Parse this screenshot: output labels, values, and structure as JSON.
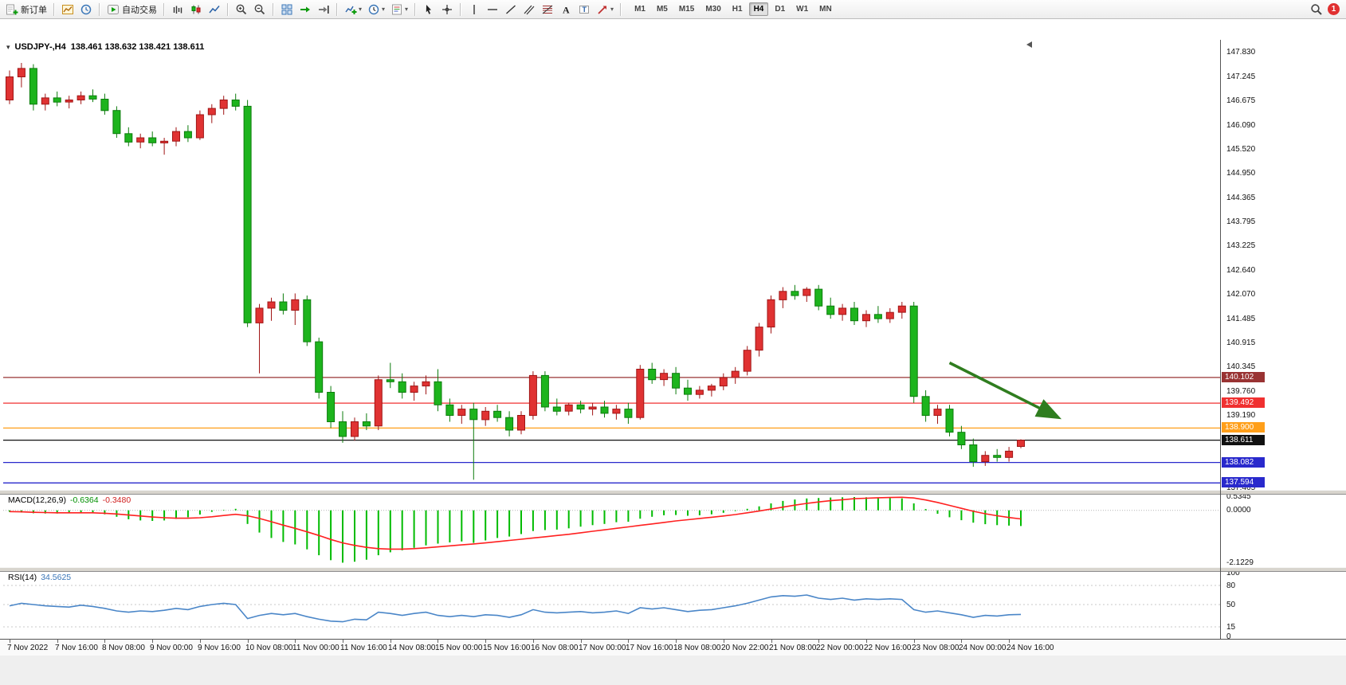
{
  "toolbar": {
    "new_order_label": "新订单",
    "auto_trading_label": "自动交易",
    "timeframes": [
      "M1",
      "M5",
      "M15",
      "M30",
      "H1",
      "H4",
      "D1",
      "W1",
      "MN"
    ],
    "active_timeframe": "H4",
    "notification_count": "1"
  },
  "chart": {
    "title_symbol": "USDJPY-,H4",
    "title_ohlc": "138.461 138.632 138.421 138.611"
  },
  "chart_data": {
    "type": "candlestick",
    "symbol": "USDJPY-",
    "timeframe": "H4",
    "title": "USDJPY-,H4 138.461 138.632 138.421 138.611",
    "current_ohlc": {
      "open": "138.461",
      "high": "138.632",
      "low": "138.421",
      "close": "138.611"
    },
    "price_range": [
      137.43,
      148.13
    ],
    "y_ticks": [
      "147.830",
      "147.245",
      "146.675",
      "146.090",
      "145.520",
      "144.950",
      "144.365",
      "143.795",
      "143.225",
      "142.640",
      "142.070",
      "141.485",
      "140.915",
      "140.345",
      "139.760",
      "139.190",
      "137.465"
    ],
    "x_label_step": 4,
    "x_labels": [
      "7 Nov 2022",
      "7 Nov 16:00",
      "8 Nov 08:00",
      "9 Nov 00:00",
      "9 Nov 16:00",
      "10 Nov 08:00",
      "11 Nov 00:00",
      "11 Nov 16:00",
      "14 Nov 08:00",
      "15 Nov 00:00",
      "15 Nov 16:00",
      "16 Nov 08:00",
      "17 Nov 00:00",
      "17 Nov 16:00",
      "18 Nov 08:00",
      "20 Nov 22:00",
      "21 Nov 08:00",
      "22 Nov 00:00",
      "22 Nov 16:00",
      "23 Nov 08:00",
      "24 Nov 00:00",
      "24 Nov 16:00"
    ],
    "colors": {
      "up": "#e03232",
      "up_border": "#a01515",
      "down": "#1db41d",
      "down_border": "#0c7c0c",
      "background": "#ffffff"
    },
    "candles": [
      [
        146.7,
        147.4,
        146.6,
        147.25
      ],
      [
        147.25,
        147.58,
        147.0,
        147.45
      ],
      [
        147.45,
        147.55,
        146.45,
        146.6
      ],
      [
        146.6,
        146.85,
        146.45,
        146.75
      ],
      [
        146.75,
        146.9,
        146.55,
        146.65
      ],
      [
        146.65,
        146.8,
        146.5,
        146.7
      ],
      [
        146.7,
        146.9,
        146.6,
        146.8
      ],
      [
        146.8,
        146.95,
        146.65,
        146.72
      ],
      [
        146.72,
        146.85,
        146.35,
        146.45
      ],
      [
        146.45,
        146.55,
        145.8,
        145.9
      ],
      [
        145.9,
        146.05,
        145.6,
        145.7
      ],
      [
        145.7,
        145.9,
        145.55,
        145.8
      ],
      [
        145.8,
        145.95,
        145.6,
        145.68
      ],
      [
        145.68,
        145.8,
        145.4,
        145.72
      ],
      [
        145.72,
        146.05,
        145.6,
        145.95
      ],
      [
        145.95,
        146.1,
        145.7,
        145.8
      ],
      [
        145.8,
        146.45,
        145.75,
        146.35
      ],
      [
        146.35,
        146.6,
        146.15,
        146.5
      ],
      [
        146.5,
        146.8,
        146.35,
        146.7
      ],
      [
        146.7,
        146.85,
        146.45,
        146.55
      ],
      [
        146.55,
        146.7,
        141.3,
        141.4
      ],
      [
        141.4,
        141.85,
        140.2,
        141.75
      ],
      [
        141.75,
        142.0,
        141.45,
        141.9
      ],
      [
        141.9,
        142.1,
        141.6,
        141.7
      ],
      [
        141.7,
        142.1,
        141.35,
        141.95
      ],
      [
        141.95,
        142.05,
        140.85,
        140.95
      ],
      [
        140.95,
        141.05,
        139.6,
        139.75
      ],
      [
        139.75,
        139.9,
        138.9,
        139.05
      ],
      [
        139.05,
        139.3,
        138.55,
        138.7
      ],
      [
        138.7,
        139.15,
        138.6,
        139.05
      ],
      [
        139.05,
        139.25,
        138.85,
        138.95
      ],
      [
        138.95,
        140.15,
        138.85,
        140.05
      ],
      [
        140.05,
        140.45,
        139.85,
        140.0
      ],
      [
        140.0,
        140.2,
        139.6,
        139.75
      ],
      [
        139.75,
        140.0,
        139.55,
        139.9
      ],
      [
        139.9,
        140.15,
        139.7,
        140.0
      ],
      [
        140.0,
        140.3,
        139.3,
        139.45
      ],
      [
        139.45,
        139.6,
        139.05,
        139.2
      ],
      [
        139.2,
        139.45,
        139.0,
        139.35
      ],
      [
        139.35,
        139.5,
        137.67,
        139.1
      ],
      [
        139.1,
        139.4,
        138.95,
        139.3
      ],
      [
        139.3,
        139.45,
        139.05,
        139.15
      ],
      [
        139.15,
        139.3,
        138.7,
        138.85
      ],
      [
        138.85,
        139.3,
        138.75,
        139.2
      ],
      [
        139.2,
        140.25,
        139.1,
        140.15
      ],
      [
        140.15,
        140.25,
        139.3,
        139.4
      ],
      [
        139.4,
        139.6,
        139.2,
        139.3
      ],
      [
        139.3,
        139.5,
        139.2,
        139.45
      ],
      [
        139.45,
        139.55,
        139.25,
        139.35
      ],
      [
        139.35,
        139.5,
        139.2,
        139.4
      ],
      [
        139.4,
        139.55,
        139.15,
        139.25
      ],
      [
        139.25,
        139.45,
        139.1,
        139.35
      ],
      [
        139.35,
        139.5,
        139.0,
        139.15
      ],
      [
        139.15,
        140.4,
        139.1,
        140.3
      ],
      [
        140.3,
        140.45,
        139.95,
        140.05
      ],
      [
        140.05,
        140.3,
        139.9,
        140.2
      ],
      [
        140.2,
        140.35,
        139.7,
        139.85
      ],
      [
        139.85,
        140.05,
        139.55,
        139.7
      ],
      [
        139.7,
        139.9,
        139.6,
        139.8
      ],
      [
        139.8,
        139.95,
        139.65,
        139.9
      ],
      [
        139.9,
        140.2,
        139.8,
        140.1
      ],
      [
        140.1,
        140.35,
        139.95,
        140.25
      ],
      [
        140.25,
        140.85,
        140.15,
        140.75
      ],
      [
        140.75,
        141.4,
        140.6,
        141.3
      ],
      [
        141.3,
        142.05,
        141.15,
        141.95
      ],
      [
        141.95,
        142.25,
        141.75,
        142.15
      ],
      [
        142.15,
        142.3,
        141.95,
        142.05
      ],
      [
        142.05,
        142.25,
        141.9,
        142.2
      ],
      [
        142.2,
        142.3,
        141.7,
        141.8
      ],
      [
        141.8,
        142.0,
        141.5,
        141.6
      ],
      [
        141.6,
        141.85,
        141.45,
        141.75
      ],
      [
        141.75,
        141.9,
        141.35,
        141.45
      ],
      [
        141.45,
        141.7,
        141.3,
        141.6
      ],
      [
        141.6,
        141.8,
        141.4,
        141.5
      ],
      [
        141.5,
        141.75,
        141.4,
        141.65
      ],
      [
        141.65,
        141.9,
        141.5,
        141.8
      ],
      [
        141.8,
        141.9,
        139.5,
        139.65
      ],
      [
        139.65,
        139.8,
        139.05,
        139.2
      ],
      [
        139.2,
        139.45,
        139.0,
        139.35
      ],
      [
        139.35,
        139.45,
        138.7,
        138.8
      ],
      [
        138.8,
        138.95,
        138.4,
        138.5
      ],
      [
        138.5,
        138.65,
        137.98,
        138.1
      ],
      [
        138.1,
        138.35,
        138.0,
        138.25
      ],
      [
        138.25,
        138.4,
        138.1,
        138.2
      ],
      [
        138.2,
        138.45,
        138.1,
        138.35
      ],
      [
        138.461,
        138.632,
        138.421,
        138.611
      ]
    ],
    "hlines": [
      {
        "price": 140.102,
        "label": "140.102",
        "color": "#993333"
      },
      {
        "price": 139.492,
        "label": "139.492",
        "color": "#f03030"
      },
      {
        "price": 138.9,
        "label": "138.900",
        "color": "#ff9f1a"
      },
      {
        "price": 138.611,
        "label": "138.611",
        "color": "#111111"
      },
      {
        "price": 138.082,
        "label": "138.082",
        "color": "#2929cc"
      },
      {
        "price": 137.594,
        "label": "137.594",
        "color": "#2929cc"
      }
    ],
    "arrow": {
      "from_index": 79,
      "from_price": 140.45,
      "to_index": 88,
      "to_price": 139.17,
      "color": "#2f7d1f"
    },
    "macd": {
      "label": "MACD(12,26,9)",
      "main_value": "-0.6364",
      "signal_value": "-0.3480",
      "range": [
        0.7,
        -2.3
      ],
      "hist_color": "#00bb00",
      "signal_color": "#ff2020",
      "ticks": [
        {
          "value": 0.5345,
          "label": "0.5345"
        },
        {
          "value": 0,
          "label": "0.0000"
        },
        {
          "value": -2.1229,
          "label": "-2.1229"
        }
      ],
      "histogram": [
        -0.06,
        -0.09,
        -0.12,
        -0.13,
        -0.13,
        -0.11,
        -0.09,
        -0.11,
        -0.16,
        -0.26,
        -0.36,
        -0.41,
        -0.43,
        -0.41,
        -0.35,
        -0.28,
        -0.17,
        -0.06,
        0.02,
        0.06,
        -0.55,
        -0.9,
        -1.12,
        -1.28,
        -1.38,
        -1.58,
        -1.82,
        -2.02,
        -2.12,
        -2.08,
        -2.0,
        -1.82,
        -1.7,
        -1.62,
        -1.52,
        -1.42,
        -1.35,
        -1.3,
        -1.26,
        -1.32,
        -1.22,
        -1.12,
        -1.06,
        -0.96,
        -0.84,
        -0.8,
        -0.78,
        -0.73,
        -0.66,
        -0.6,
        -0.55,
        -0.48,
        -0.46,
        -0.34,
        -0.26,
        -0.2,
        -0.19,
        -0.22,
        -0.2,
        -0.16,
        -0.1,
        -0.03,
        0.06,
        0.16,
        0.28,
        0.38,
        0.44,
        0.48,
        0.5,
        0.52,
        0.53,
        0.54,
        0.53,
        0.52,
        0.5,
        0.48,
        0.28,
        0.05,
        -0.14,
        -0.28,
        -0.4,
        -0.5,
        -0.56,
        -0.6,
        -0.62,
        -0.6364
      ],
      "signal": [
        -0.05,
        -0.06,
        -0.08,
        -0.09,
        -0.1,
        -0.1,
        -0.1,
        -0.1,
        -0.12,
        -0.15,
        -0.19,
        -0.23,
        -0.27,
        -0.3,
        -0.32,
        -0.32,
        -0.3,
        -0.26,
        -0.21,
        -0.16,
        -0.22,
        -0.33,
        -0.46,
        -0.6,
        -0.73,
        -0.87,
        -1.02,
        -1.18,
        -1.32,
        -1.42,
        -1.5,
        -1.55,
        -1.57,
        -1.57,
        -1.55,
        -1.52,
        -1.48,
        -1.44,
        -1.4,
        -1.36,
        -1.32,
        -1.27,
        -1.22,
        -1.17,
        -1.12,
        -1.07,
        -1.02,
        -0.97,
        -0.91,
        -0.85,
        -0.79,
        -0.73,
        -0.67,
        -0.61,
        -0.55,
        -0.49,
        -0.43,
        -0.38,
        -0.33,
        -0.28,
        -0.23,
        -0.17,
        -0.1,
        -0.03,
        0.05,
        0.13,
        0.21,
        0.28,
        0.34,
        0.39,
        0.43,
        0.47,
        0.49,
        0.51,
        0.52,
        0.53,
        0.5,
        0.42,
        0.32,
        0.2,
        0.08,
        -0.04,
        -0.14,
        -0.22,
        -0.29,
        -0.348
      ]
    },
    "rsi": {
      "label": "RSI(14)",
      "value": "34.5625",
      "color": "#4a86c8",
      "levels": [
        80,
        50,
        15
      ],
      "ticks": [
        {
          "value": 100,
          "label": "100"
        },
        {
          "value": 80,
          "label": "80"
        },
        {
          "value": 50,
          "label": "50"
        },
        {
          "value": 15,
          "label": "15"
        },
        {
          "value": 0,
          "label": "0"
        }
      ],
      "values": [
        48,
        52,
        50,
        48,
        47,
        46,
        49,
        47,
        44,
        40,
        38,
        40,
        39,
        41,
        44,
        42,
        47,
        50,
        52,
        50,
        28,
        33,
        36,
        34,
        36,
        31,
        27,
        24,
        23,
        27,
        26,
        38,
        36,
        33,
        36,
        38,
        33,
        31,
        33,
        31,
        34,
        33,
        30,
        34,
        42,
        38,
        37,
        38,
        39,
        37,
        38,
        40,
        36,
        45,
        43,
        45,
        42,
        39,
        41,
        42,
        45,
        48,
        52,
        57,
        62,
        64,
        63,
        65,
        60,
        58,
        60,
        57,
        59,
        58,
        59,
        58,
        42,
        38,
        40,
        37,
        34,
        30,
        33,
        32,
        34,
        34.56
      ]
    }
  }
}
